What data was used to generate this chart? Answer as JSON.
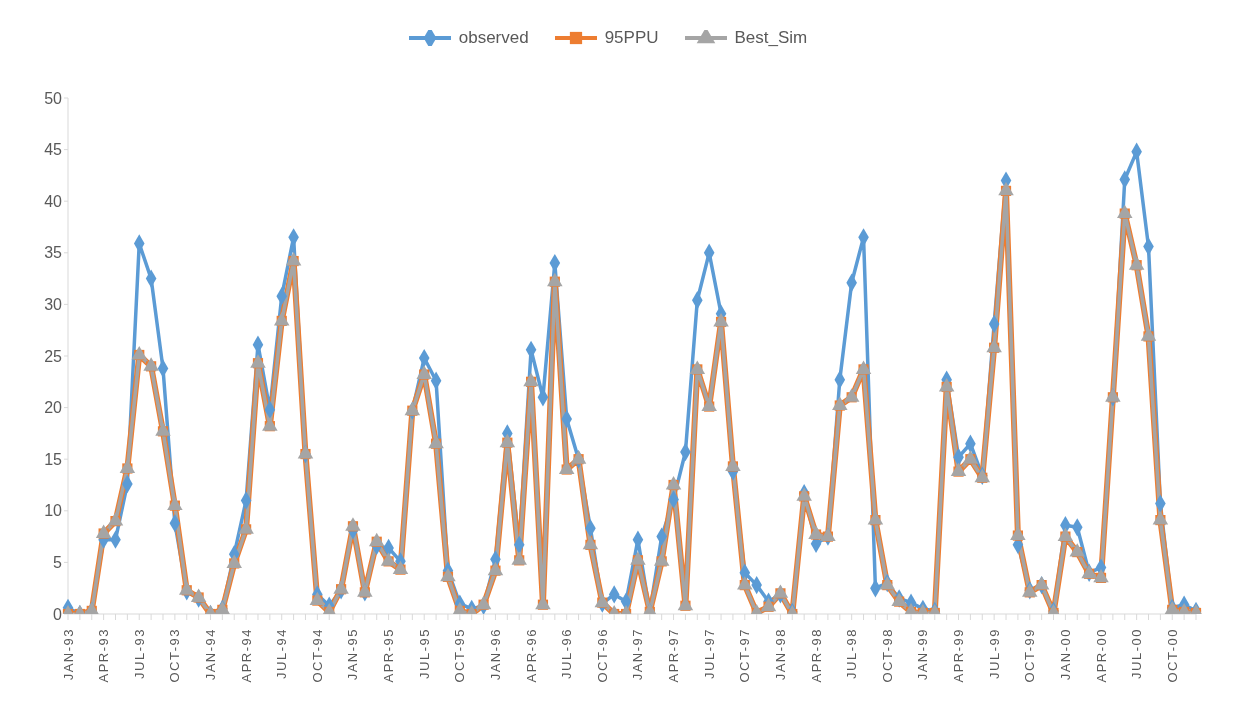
{
  "chart_data": {
    "type": "line",
    "legend": "top",
    "grid": false,
    "ylim": [
      0,
      50
    ],
    "yticks": [
      0,
      5,
      10,
      15,
      20,
      25,
      30,
      35,
      40,
      45,
      50
    ],
    "line_style": "solid",
    "categories": [
      "JAN-93",
      null,
      null,
      "APR-93",
      null,
      null,
      "JUL-93",
      null,
      null,
      "OCT-93",
      null,
      null,
      "JAN-94",
      null,
      null,
      "APR-94",
      null,
      null,
      "JUL-94",
      null,
      null,
      "OCT-94",
      null,
      null,
      "JAN-95",
      null,
      null,
      "APR-95",
      null,
      null,
      "JUL-95",
      null,
      null,
      "OCT-95",
      null,
      null,
      "JAN-96",
      null,
      null,
      "APR-96",
      null,
      null,
      "JUL-96",
      null,
      null,
      "OCT-96",
      null,
      null,
      "JAN-97",
      null,
      null,
      "APR-97",
      null,
      null,
      "JUL-97",
      null,
      null,
      "OCT-97",
      null,
      null,
      "JAN-98",
      null,
      null,
      "APR-98",
      null,
      null,
      "JUL-98",
      null,
      null,
      "OCT-98",
      null,
      null,
      "JAN-99",
      null,
      null,
      "APR-99",
      null,
      null,
      "JUL-99",
      null,
      null,
      "OCT-99",
      null,
      null,
      "JAN-00",
      null,
      null,
      "APR-00",
      null,
      null,
      "JUL-00",
      null,
      null,
      "OCT-00",
      null,
      null
    ],
    "series": [
      {
        "name": "observed",
        "color": "#5b9bd5",
        "marker": "diamond",
        "values": [
          0.6,
          0,
          0.3,
          7.2,
          7.2,
          12.6,
          35.9,
          32.5,
          23.8,
          8.8,
          2.2,
          1.5,
          0,
          0.5,
          5.8,
          11,
          26.1,
          19.8,
          30.8,
          36.5,
          15.5,
          1.9,
          0.8,
          2.3,
          8.1,
          2.1,
          6.6,
          6.4,
          5.1,
          19.7,
          24.8,
          22.6,
          4.2,
          1,
          0.5,
          0.8,
          5.3,
          17.5,
          6.7,
          25.6,
          21,
          34,
          18.9,
          15,
          8.3,
          1,
          1.9,
          1.2,
          7.2,
          0.2,
          7.5,
          11.1,
          15.7,
          30.4,
          35,
          29.1,
          13.8,
          4,
          2.8,
          1.2,
          1.9,
          0.2,
          11.7,
          6.8,
          7.5,
          22.7,
          32.1,
          36.5,
          2.5,
          3,
          1.5,
          1.1,
          0.5,
          0.3,
          22.7,
          15.2,
          16.5,
          13.4,
          28.1,
          42,
          6.7,
          2.3,
          2.8,
          0.3,
          8.6,
          8.4,
          4,
          4.5,
          21,
          42.1,
          44.8,
          35.6,
          10.7,
          0.6,
          0.9,
          0.3
        ]
      },
      {
        "name": "95PPU",
        "color": "#ed7d31",
        "marker": "square",
        "values": [
          0,
          0,
          0.3,
          7.8,
          9,
          14.1,
          25.1,
          24,
          17.7,
          10.5,
          2.3,
          1.6,
          0,
          0.4,
          4.9,
          8.2,
          24.3,
          18.2,
          28.4,
          34.2,
          15.5,
          1.3,
          0.2,
          2.4,
          8.5,
          2.1,
          7,
          5.1,
          4.3,
          19.7,
          23.2,
          16.5,
          3.6,
          0.3,
          0,
          0.9,
          4.2,
          16.6,
          5.2,
          22.5,
          0.9,
          32.2,
          14,
          15,
          6.7,
          1.1,
          0,
          0,
          5.2,
          0.2,
          5.1,
          12.5,
          0.8,
          23.7,
          20.1,
          28.3,
          14.3,
          2.8,
          0.1,
          0.7,
          2,
          0,
          11.4,
          7.7,
          7.5,
          20.2,
          21,
          23.7,
          9.1,
          2.8,
          1.2,
          0.2,
          0.1,
          0.1,
          22,
          13.8,
          15,
          13.2,
          25.8,
          41,
          7.6,
          2.1,
          2.8,
          0.1,
          7.5,
          6,
          3.9,
          3.5,
          21,
          38.8,
          33.8,
          26.9,
          9.1,
          0.4,
          0.2,
          0.1
        ]
      },
      {
        "name": "Best_Sim",
        "color": "#a5a5a5",
        "marker": "triangle",
        "values": [
          0,
          0,
          0.3,
          7.8,
          9,
          14.1,
          25.1,
          24,
          17.7,
          10.5,
          2.3,
          1.6,
          0,
          0.4,
          4.9,
          8.2,
          24.3,
          18.2,
          28.4,
          34.2,
          15.5,
          1.3,
          0.2,
          2.4,
          8.5,
          2.1,
          7,
          5.1,
          4.3,
          19.7,
          23.2,
          16.5,
          3.6,
          0.3,
          0,
          0.9,
          4.2,
          16.6,
          5.2,
          22.5,
          0.9,
          32.2,
          14,
          15,
          6.7,
          1.1,
          0,
          0,
          5.2,
          0.2,
          5.1,
          12.5,
          0.8,
          23.7,
          20.1,
          28.3,
          14.3,
          2.8,
          0.1,
          0.7,
          2,
          0,
          11.4,
          7.7,
          7.5,
          20.2,
          21,
          23.7,
          9.1,
          2.8,
          1.2,
          0.2,
          0.1,
          0.1,
          22,
          13.8,
          15,
          13.2,
          25.8,
          41,
          7.6,
          2.1,
          2.8,
          0.1,
          7.5,
          6,
          3.9,
          3.5,
          21,
          38.8,
          33.8,
          26.9,
          9.1,
          0.4,
          0.2,
          0.1
        ]
      }
    ]
  }
}
